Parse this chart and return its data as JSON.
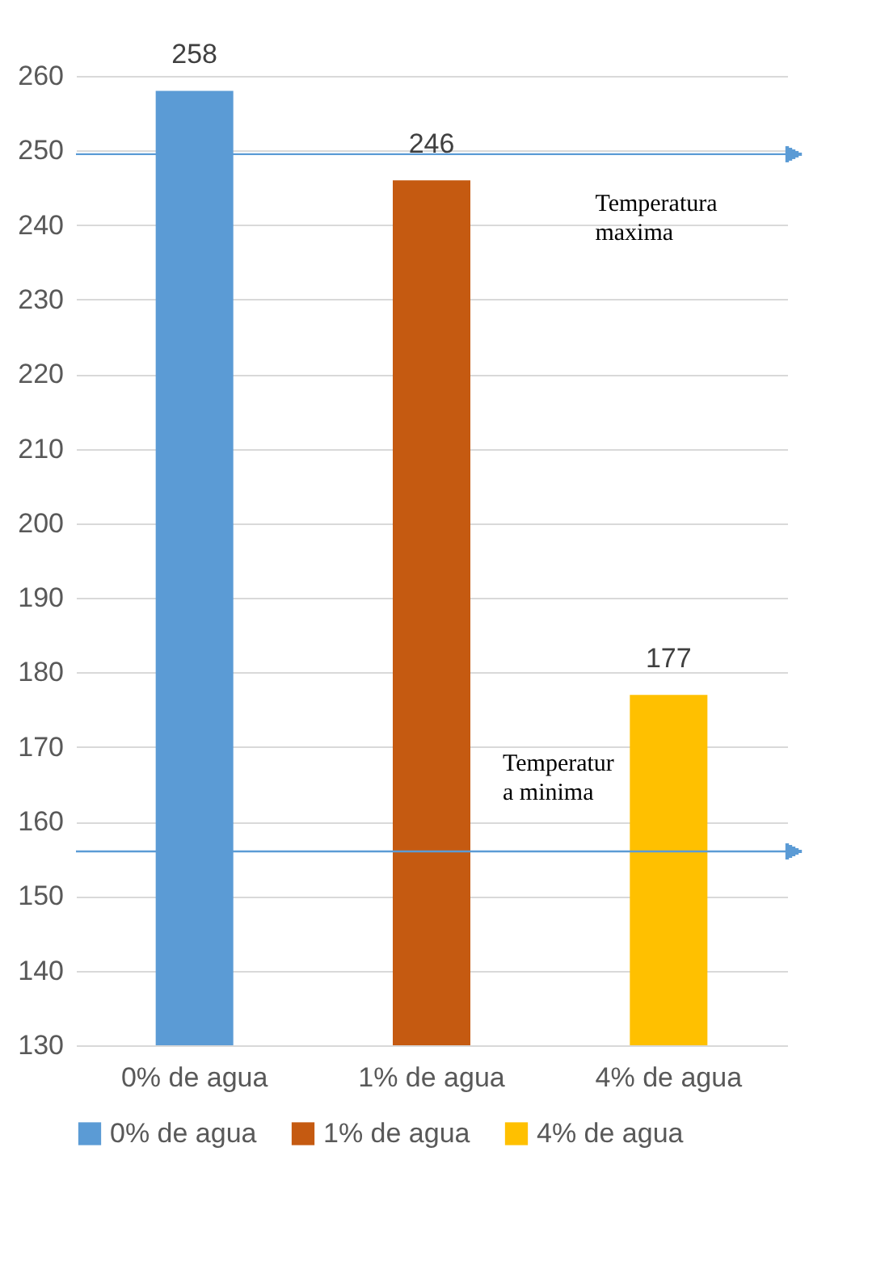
{
  "chart_data": {
    "type": "bar",
    "categories": [
      "0% de agua",
      "1% de agua",
      "4% de agua"
    ],
    "series": [
      {
        "name": "0% de agua",
        "color": "#5b9bd5",
        "values": [
          258,
          null,
          null
        ]
      },
      {
        "name": "1% de agua",
        "color": "#c55a11",
        "values": [
          null,
          246,
          null
        ]
      },
      {
        "name": "4% de agua",
        "color": "#ffc000",
        "values": [
          null,
          null,
          177
        ]
      }
    ],
    "ylim": [
      130,
      260
    ],
    "yticks": [
      130,
      140,
      150,
      160,
      170,
      180,
      190,
      200,
      210,
      220,
      230,
      240,
      250,
      260
    ],
    "grid": "y",
    "data_labels": true,
    "legend": "bottom",
    "ref_lines": [
      {
        "axis": "y",
        "value": 249.5,
        "label": "Temperatura\nmaxima",
        "color": "#5b9bd5"
      },
      {
        "axis": "y",
        "value": 156,
        "label": "Temperatur\na minima",
        "color": "#5b9bd5"
      }
    ]
  }
}
